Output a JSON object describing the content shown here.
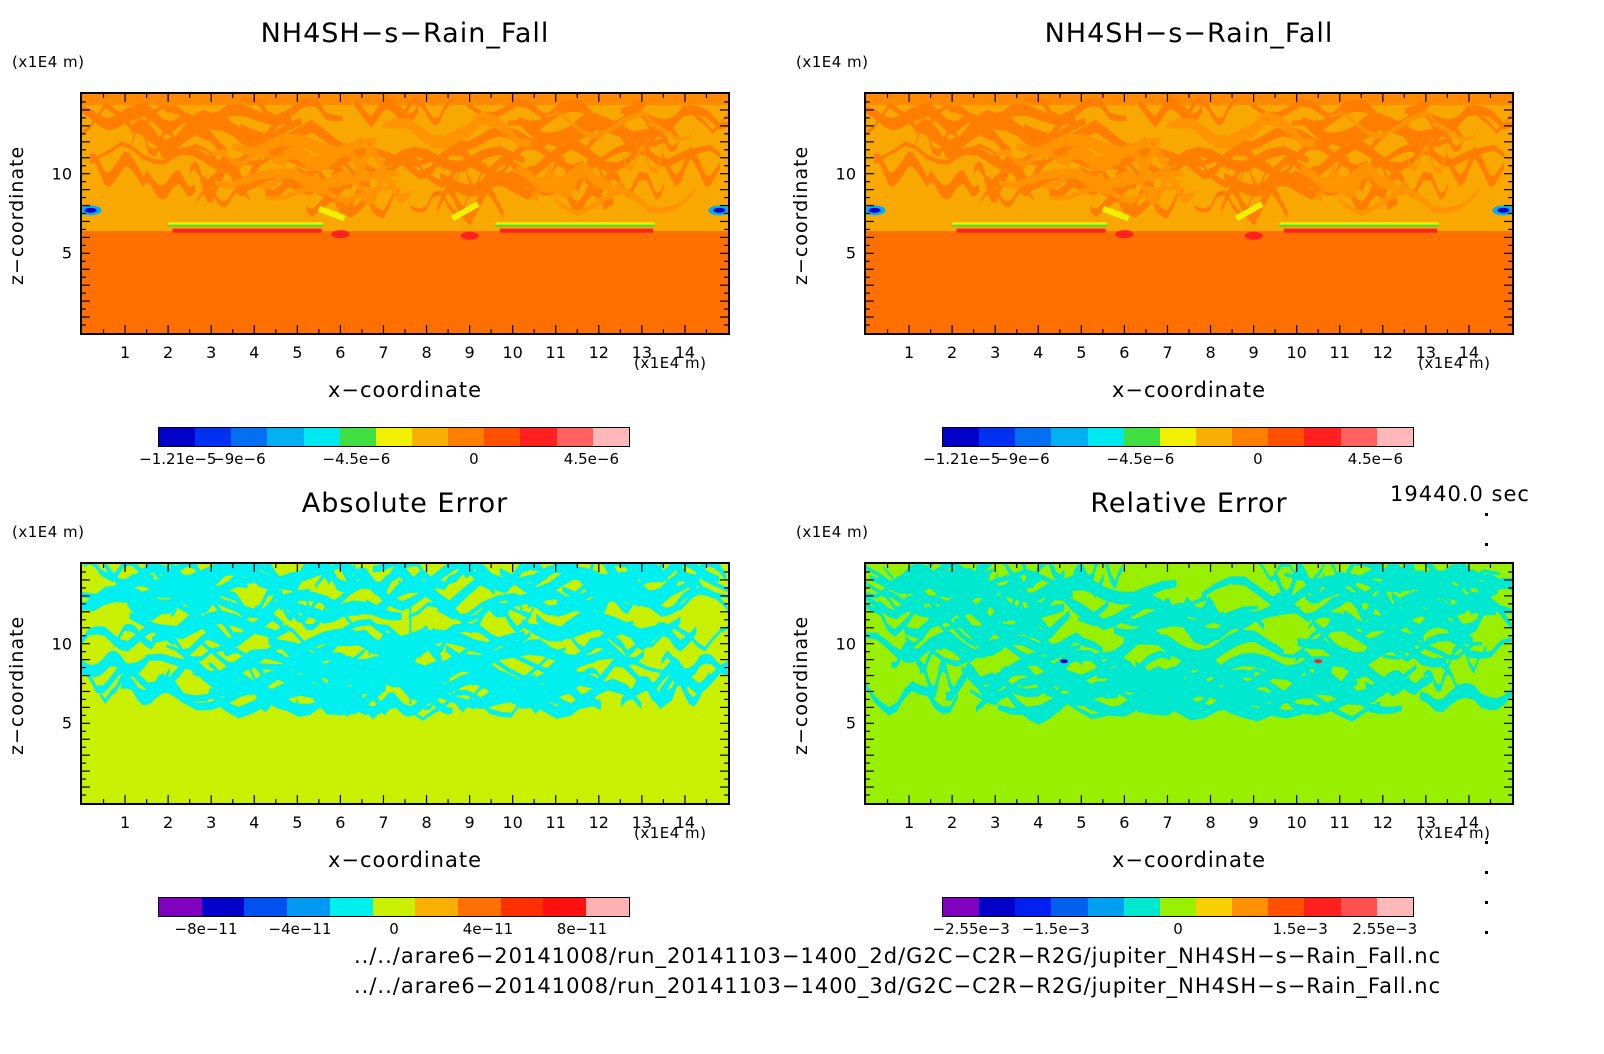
{
  "panels": [
    {
      "title": "NH4SH−s−Rain_Fall",
      "unit_z": "(x1E4 m)",
      "unit_x": "(x1E4 m)",
      "xlabel": "x−coordinate",
      "ylabel": "z−coordinate",
      "colorbar": {
        "colors": [
          "#0000c8",
          "#0030f0",
          "#0070f0",
          "#00b0f0",
          "#00e8f0",
          "#40e040",
          "#f0f000",
          "#f8b000",
          "#ff8000",
          "#ff5000",
          "#ff2020",
          "#ff6060",
          "#ffb8b8"
        ],
        "labels": [
          "−1.21e−5",
          "−9e−6",
          "−4.5e−6",
          "0",
          "4.5e−6"
        ]
      }
    },
    {
      "title": "NH4SH−s−Rain_Fall",
      "unit_z": "(x1E4 m)",
      "unit_x": "(x1E4 m)",
      "xlabel": "x−coordinate",
      "ylabel": "z−coordinate",
      "colorbar": {
        "colors": [
          "#0000c8",
          "#0030f0",
          "#0070f0",
          "#00b0f0",
          "#00e8f0",
          "#40e040",
          "#f0f000",
          "#f8b000",
          "#ff8000",
          "#ff5000",
          "#ff2020",
          "#ff6060",
          "#ffb8b8"
        ],
        "labels": [
          "−1.21e−5",
          "−9e−6",
          "−4.5e−6",
          "0",
          "4.5e−6"
        ]
      }
    },
    {
      "title": "Absolute Error",
      "unit_z": "(x1E4 m)",
      "unit_x": "(x1E4 m)",
      "xlabel": "x−coordinate",
      "ylabel": "z−coordinate",
      "colorbar": {
        "colors": [
          "#8000c0",
          "#0000c8",
          "#0050f0",
          "#0098f0",
          "#00f0f0",
          "#c8f000",
          "#f8b000",
          "#ff7000",
          "#ff3000",
          "#ff1010",
          "#ffb0b0"
        ],
        "labels": [
          "−8e−11",
          "−4e−11",
          "0",
          "4e−11",
          "8e−11"
        ]
      }
    },
    {
      "title": "Relative Error",
      "unit_z": "(x1E4 m)",
      "unit_x": "(x1E4 m)",
      "xlabel": "x−coordinate",
      "ylabel": "z−coordinate",
      "colorbar": {
        "colors": [
          "#8000c0",
          "#0000c8",
          "#0020f0",
          "#0060f0",
          "#00a0f0",
          "#00e8d0",
          "#98f000",
          "#f8d000",
          "#ff9000",
          "#ff5000",
          "#ff2020",
          "#ff5050",
          "#ffb8b8"
        ],
        "labels": [
          "−2.55e−3",
          "−1.5e−3",
          "0",
          "1.5e−3",
          "2.55e−3"
        ]
      }
    }
  ],
  "time_label": "19440.0 sec",
  "paths": [
    "../../arare6−20141008/run_20141103−1400_2d/G2C−C2R−R2G/jupiter_NH4SH−s−Rain_Fall.nc",
    "../../arare6−20141008/run_20141103−1400_3d/G2C−C2R−R2G/jupiter_NH4SH−s−Rain_Fall.nc"
  ],
  "chart_data": [
    {
      "type": "heatmap",
      "title": "NH4SH−s−Rain_Fall",
      "xlabel": "x−coordinate",
      "ylabel": "z−coordinate",
      "x_unit": "(x1E4 m)",
      "y_unit": "(x1E4 m)",
      "xlim": [
        0,
        15
      ],
      "ylim": [
        0,
        15
      ],
      "xticks": [
        1,
        2,
        3,
        4,
        5,
        6,
        7,
        8,
        9,
        10,
        11,
        12,
        13,
        14
      ],
      "yticks": [
        5,
        10
      ],
      "levels": [
        "−1.21e−5",
        "−9e−6",
        "−4.5e−6",
        "0",
        "4.5e−6"
      ],
      "layers": [
        {
          "z_range": [
            0,
            6.3
          ],
          "value_level": "slightly positive (orange)"
        },
        {
          "z_range": [
            6.3,
            15
          ],
          "value_level": "near zero (light orange) with positive bands"
        },
        {
          "feature": "thin negative/positive bands",
          "x": [
            2,
            5.6
          ],
          "z": 6.7
        },
        {
          "feature": "thin negative/positive bands",
          "x": [
            9.6,
            13.3
          ],
          "z": 6.7
        }
      ]
    },
    {
      "type": "heatmap",
      "title": "NH4SH−s−Rain_Fall",
      "xlabel": "x−coordinate",
      "ylabel": "z−coordinate",
      "x_unit": "(x1E4 m)",
      "y_unit": "(x1E4 m)",
      "xlim": [
        0,
        15
      ],
      "ylim": [
        0,
        15
      ],
      "xticks": [
        1,
        2,
        3,
        4,
        5,
        6,
        7,
        8,
        9,
        10,
        11,
        12,
        13,
        14
      ],
      "yticks": [
        5,
        10
      ],
      "levels": [
        "−1.21e−5",
        "−9e−6",
        "−4.5e−6",
        "0",
        "4.5e−6"
      ]
    },
    {
      "type": "heatmap",
      "title": "Absolute Error",
      "xlabel": "x−coordinate",
      "ylabel": "z−coordinate",
      "x_unit": "(x1E4 m)",
      "y_unit": "(x1E4 m)",
      "xlim": [
        0,
        15
      ],
      "ylim": [
        0,
        15
      ],
      "xticks": [
        1,
        2,
        3,
        4,
        5,
        6,
        7,
        8,
        9,
        10,
        11,
        12,
        13,
        14
      ],
      "yticks": [
        5,
        10
      ],
      "levels": [
        "−8e−11",
        "−4e−11",
        "0",
        "4e−11",
        "8e−11"
      ]
    },
    {
      "type": "heatmap",
      "title": "Relative Error",
      "xlabel": "x−coordinate",
      "ylabel": "z−coordinate",
      "x_unit": "(x1E4 m)",
      "y_unit": "(x1E4 m)",
      "xlim": [
        0,
        15
      ],
      "ylim": [
        0,
        15
      ],
      "xticks": [
        1,
        2,
        3,
        4,
        5,
        6,
        7,
        8,
        9,
        10,
        11,
        12,
        13,
        14
      ],
      "yticks": [
        5,
        10
      ],
      "levels": [
        "−2.55e−3",
        "−1.5e−3",
        "0",
        "1.5e−3",
        "2.55e−3"
      ]
    }
  ]
}
